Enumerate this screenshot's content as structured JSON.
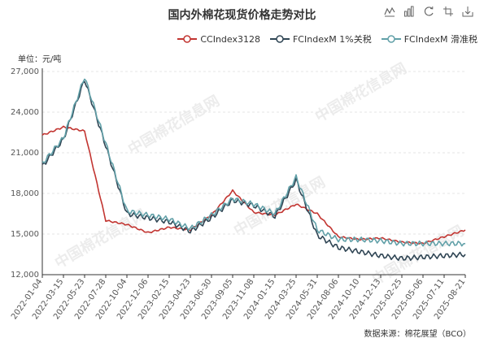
{
  "title": "国内外棉花现货价格走势对比",
  "unit": "单位：元/吨",
  "source": "数据来源：棉花展望（BCO）",
  "watermark": "中国棉花信息网",
  "toolbar": [
    {
      "name": "line-icon"
    },
    {
      "name": "bar-icon"
    },
    {
      "name": "refresh-icon"
    },
    {
      "name": "restore-icon"
    },
    {
      "name": "save-image-icon"
    }
  ],
  "legend": [
    {
      "name": "CCIndex3128",
      "color": "#c23531"
    },
    {
      "name": "FCIndexM 1%关税",
      "color": "#2f4554"
    },
    {
      "name": "FCIndexM 滑准税",
      "color": "#61a0a8"
    }
  ],
  "chart_data": {
    "type": "line",
    "x_ticks": [
      "2022-01-04",
      "2022-03-15",
      "2022-05-23",
      "2022-07-28",
      "2022-10-04",
      "2022-12-06",
      "2023-02-15",
      "2023-04-23",
      "2023-06-30",
      "2023-09-05",
      "2023-11-08",
      "2024-01-15",
      "2024-03-25",
      "2024-05-31",
      "2024-08-06",
      "2024-10-10",
      "2024-12-13",
      "2025-02-25",
      "2025-05-06",
      "2025-07-11",
      "2025-08-21"
    ],
    "y_ticks": [
      12000,
      15000,
      18000,
      21000,
      24000,
      27000
    ],
    "ylim": [
      12000,
      27000
    ],
    "series": [
      {
        "name": "CCIndex3128",
        "color": "#c23531",
        "values": [
          22300,
          22900,
          22600,
          16000,
          15700,
          15100,
          15500,
          15300,
          16400,
          18200,
          16600,
          16400,
          17200,
          16500,
          14800,
          14600,
          14700,
          14400,
          14300,
          14800,
          15300
        ]
      },
      {
        "name": "FCIndexM 1%关税",
        "color": "#2f4554",
        "values": [
          20000,
          22000,
          26400,
          21500,
          16500,
          16200,
          15900,
          15200,
          16200,
          17500,
          17100,
          16300,
          19000,
          14900,
          14000,
          13700,
          13400,
          13200,
          13300,
          13400,
          13500
        ]
      },
      {
        "name": "FCIndexM 滑准税",
        "color": "#61a0a8",
        "values": [
          20200,
          22100,
          26600,
          21700,
          16700,
          16400,
          16100,
          15400,
          16400,
          17600,
          17200,
          16500,
          19200,
          15300,
          14600,
          14600,
          14500,
          14300,
          14300,
          14300,
          14300
        ]
      }
    ]
  }
}
